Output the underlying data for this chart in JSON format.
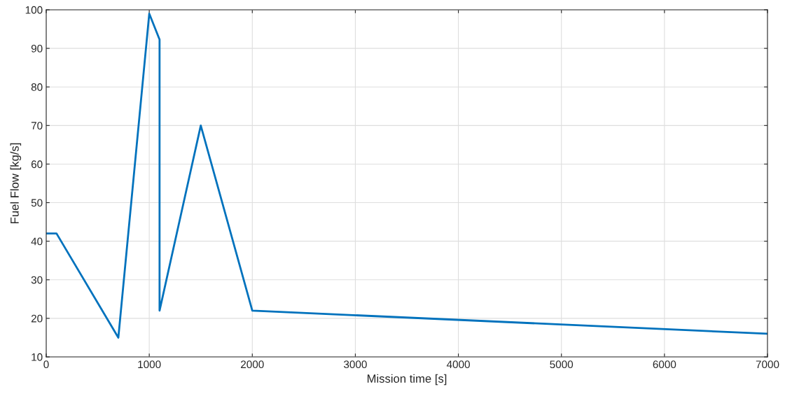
{
  "chart_data": {
    "type": "line",
    "xlabel": "Mission time [s]",
    "ylabel": "Fuel Flow [kg/s]",
    "x": [
      0,
      100,
      700,
      1000,
      1100,
      1100,
      1500,
      2000,
      7000
    ],
    "series": [
      {
        "color": "#0072bd",
        "values": [
          42,
          42,
          15,
          99,
          92.3,
          22,
          70,
          22,
          16
        ]
      }
    ],
    "xlim": [
      0,
      7000
    ],
    "xticks": [
      0,
      1000,
      2000,
      3000,
      4000,
      5000,
      6000,
      7000
    ],
    "ylim": [
      10,
      100
    ],
    "yticks": [
      10,
      20,
      30,
      40,
      50,
      60,
      70,
      80,
      90,
      100
    ],
    "grid": true,
    "marker": "none",
    "line_style": "solid"
  }
}
